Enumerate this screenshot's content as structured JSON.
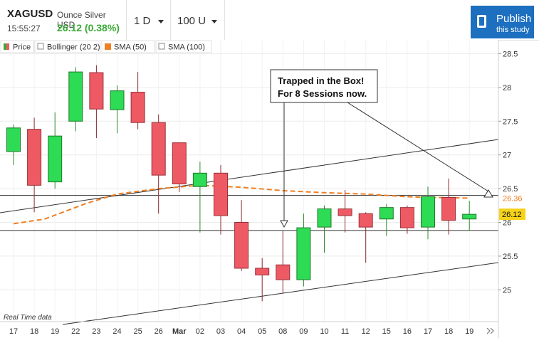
{
  "header": {
    "symbol": "XAGUSD",
    "description": "Ounce Silver USD",
    "time": "15:55:27",
    "price_change": "26.12 (0.38%)",
    "interval_label": "1 D",
    "units_label": "100 U",
    "publish_title": "Publish",
    "publish_subtitle": "this study"
  },
  "legend": [
    {
      "label": "Price",
      "swatch": "price",
      "color": "#3aaa35"
    },
    {
      "label": "Bollinger (20 2)",
      "swatch": "empty",
      "color": "#ffffff"
    },
    {
      "label": "SMA (50)",
      "swatch": "fill",
      "color": "#f07f22"
    },
    {
      "label": "SMA (100)",
      "swatch": "empty",
      "color": "#ffffff"
    }
  ],
  "colors": {
    "up": "#2ddb55",
    "down": "#ee5a64",
    "sma50": "#f07f22",
    "accent": "#1d6fbf"
  },
  "annotation": {
    "line1": "Trapped in the Box!",
    "line2": "For 8 Sessions now."
  },
  "footer": {
    "realtime": "Real Time data",
    "scroll_icon": "double-chevron-right"
  },
  "badges": {
    "sma_value": "26.36",
    "last_price": "26.12"
  },
  "chart_data": {
    "type": "candlestick",
    "y_axis_labels": [
      "28.5",
      "28",
      "27.5",
      "27",
      "26.5",
      "26",
      "25.5",
      "25"
    ],
    "ylim": [
      24.5,
      28.7
    ],
    "categories": [
      "17",
      "18",
      "19",
      "22",
      "23",
      "24",
      "25",
      "26",
      "Mar",
      "02",
      "03",
      "04",
      "05",
      "08",
      "09",
      "10",
      "11",
      "12",
      "15",
      "16",
      "17",
      "18",
      "19"
    ],
    "candles": [
      {
        "date": "17",
        "open": 27.05,
        "high": 27.45,
        "low": 26.85,
        "close": 27.4
      },
      {
        "date": "18",
        "open": 27.38,
        "high": 27.55,
        "low": 26.15,
        "close": 26.55
      },
      {
        "date": "19",
        "open": 26.6,
        "high": 27.63,
        "low": 26.5,
        "close": 27.28
      },
      {
        "date": "22",
        "open": 27.5,
        "high": 28.3,
        "low": 27.35,
        "close": 28.23
      },
      {
        "date": "23",
        "open": 28.22,
        "high": 28.33,
        "low": 27.25,
        "close": 27.68
      },
      {
        "date": "24",
        "open": 27.67,
        "high": 28.03,
        "low": 27.32,
        "close": 27.95
      },
      {
        "date": "25",
        "open": 27.93,
        "high": 28.23,
        "low": 27.38,
        "close": 27.48
      },
      {
        "date": "26",
        "open": 27.48,
        "high": 27.6,
        "low": 26.13,
        "close": 26.7
      },
      {
        "date": "Mar",
        "open": 27.18,
        "high": 27.18,
        "low": 26.45,
        "close": 26.57
      },
      {
        "date": "02",
        "open": 26.53,
        "high": 26.9,
        "low": 25.85,
        "close": 26.73
      },
      {
        "date": "03",
        "open": 26.73,
        "high": 26.85,
        "low": 25.82,
        "close": 26.1
      },
      {
        "date": "04",
        "open": 26.0,
        "high": 26.33,
        "low": 25.28,
        "close": 25.32
      },
      {
        "date": "05",
        "open": 25.32,
        "high": 25.47,
        "low": 24.83,
        "close": 25.22
      },
      {
        "date": "08",
        "open": 25.37,
        "high": 25.87,
        "low": 24.95,
        "close": 25.15
      },
      {
        "date": "09",
        "open": 25.15,
        "high": 26.13,
        "low": 25.05,
        "close": 25.92
      },
      {
        "date": "10",
        "open": 25.93,
        "high": 26.25,
        "low": 25.55,
        "close": 26.2
      },
      {
        "date": "11",
        "open": 26.2,
        "high": 26.48,
        "low": 25.85,
        "close": 26.1
      },
      {
        "date": "12",
        "open": 26.13,
        "high": 26.15,
        "low": 25.4,
        "close": 25.93
      },
      {
        "date": "15",
        "open": 26.05,
        "high": 26.27,
        "low": 25.8,
        "close": 26.22
      },
      {
        "date": "16",
        "open": 26.22,
        "high": 26.25,
        "low": 25.83,
        "close": 25.92
      },
      {
        "date": "17",
        "open": 25.93,
        "high": 26.53,
        "low": 25.75,
        "close": 26.38
      },
      {
        "date": "18",
        "open": 26.37,
        "high": 26.65,
        "low": 25.82,
        "close": 26.03
      },
      {
        "date": "19",
        "open": 26.05,
        "high": 26.32,
        "low": 25.88,
        "close": 26.12
      }
    ],
    "sma50": [
      {
        "i": 0.0,
        "y": 25.98
      },
      {
        "i": 1.5,
        "y": 26.05
      },
      {
        "i": 3.5,
        "y": 26.28
      },
      {
        "i": 5.0,
        "y": 26.42
      },
      {
        "i": 7.0,
        "y": 26.5
      },
      {
        "i": 9.0,
        "y": 26.55
      },
      {
        "i": 11.0,
        "y": 26.52
      },
      {
        "i": 13.0,
        "y": 26.47
      },
      {
        "i": 15.0,
        "y": 26.44
      },
      {
        "i": 17.0,
        "y": 26.42
      },
      {
        "i": 19.0,
        "y": 26.38
      },
      {
        "i": 20.0,
        "y": 26.37
      },
      {
        "i": 22.0,
        "y": 26.36
      }
    ],
    "box_top": 26.4,
    "box_bottom": 25.88
  }
}
